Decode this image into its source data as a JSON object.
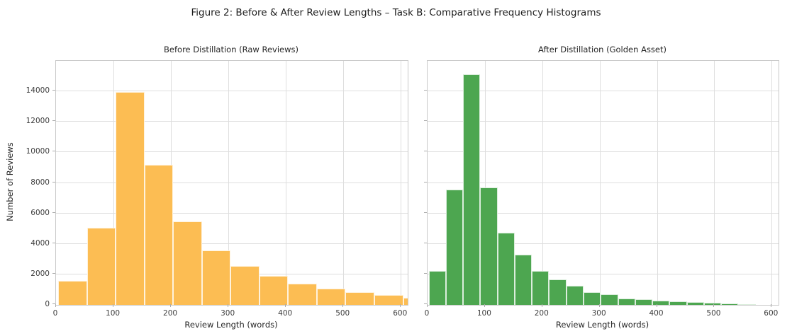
{
  "figure": {
    "suptitle": "Figure 2: Before & After Review Lengths – Task B: Comparative Frequency Histograms"
  },
  "style": {
    "grid_color": "#dedede",
    "spine_color": "#c9c9c9",
    "bar_edge_color": "rgba(255,255,255,0.8)",
    "text_color": "#262626",
    "tick_text_color": "#3d3d3d"
  },
  "chart_data": [
    {
      "type": "bar",
      "subtype": "histogram",
      "title": "Before Distillation (Raw Reviews)",
      "xlabel": "Review Length (words)",
      "ylabel": "Number of Reviews",
      "color": "#FCBD53",
      "grid": true,
      "legend": false,
      "xlim": [
        0,
        612
      ],
      "ylim": [
        0,
        16000
      ],
      "x_ticks": [
        0,
        100,
        200,
        300,
        400,
        500,
        600
      ],
      "y_ticks": [
        0,
        2000,
        4000,
        6000,
        8000,
        10000,
        12000,
        14000
      ],
      "show_y_tick_labels": true,
      "bin_start": 4,
      "bin_width": 50,
      "values": [
        1570,
        5050,
        13950,
        9200,
        5460,
        3570,
        2550,
        1900,
        1400,
        1050,
        820,
        640,
        450
      ]
    },
    {
      "type": "bar",
      "subtype": "histogram",
      "title": "After Distillation (Golden Asset)",
      "xlabel": "Review Length (words)",
      "ylabel": "Number of Reviews",
      "color": "#4DA650",
      "grid": true,
      "legend": false,
      "xlim": [
        0,
        612
      ],
      "ylim": [
        0,
        16000
      ],
      "x_ticks": [
        0,
        100,
        200,
        300,
        400,
        500,
        600
      ],
      "y_ticks": [
        0,
        2000,
        4000,
        6000,
        8000,
        10000,
        12000,
        14000
      ],
      "show_y_tick_labels": false,
      "bin_start": 2,
      "bin_width": 30,
      "values": [
        2230,
        7550,
        15100,
        7700,
        4750,
        3300,
        2230,
        1650,
        1230,
        850,
        690,
        430,
        385,
        295,
        230,
        200,
        140,
        80,
        35
      ]
    }
  ]
}
